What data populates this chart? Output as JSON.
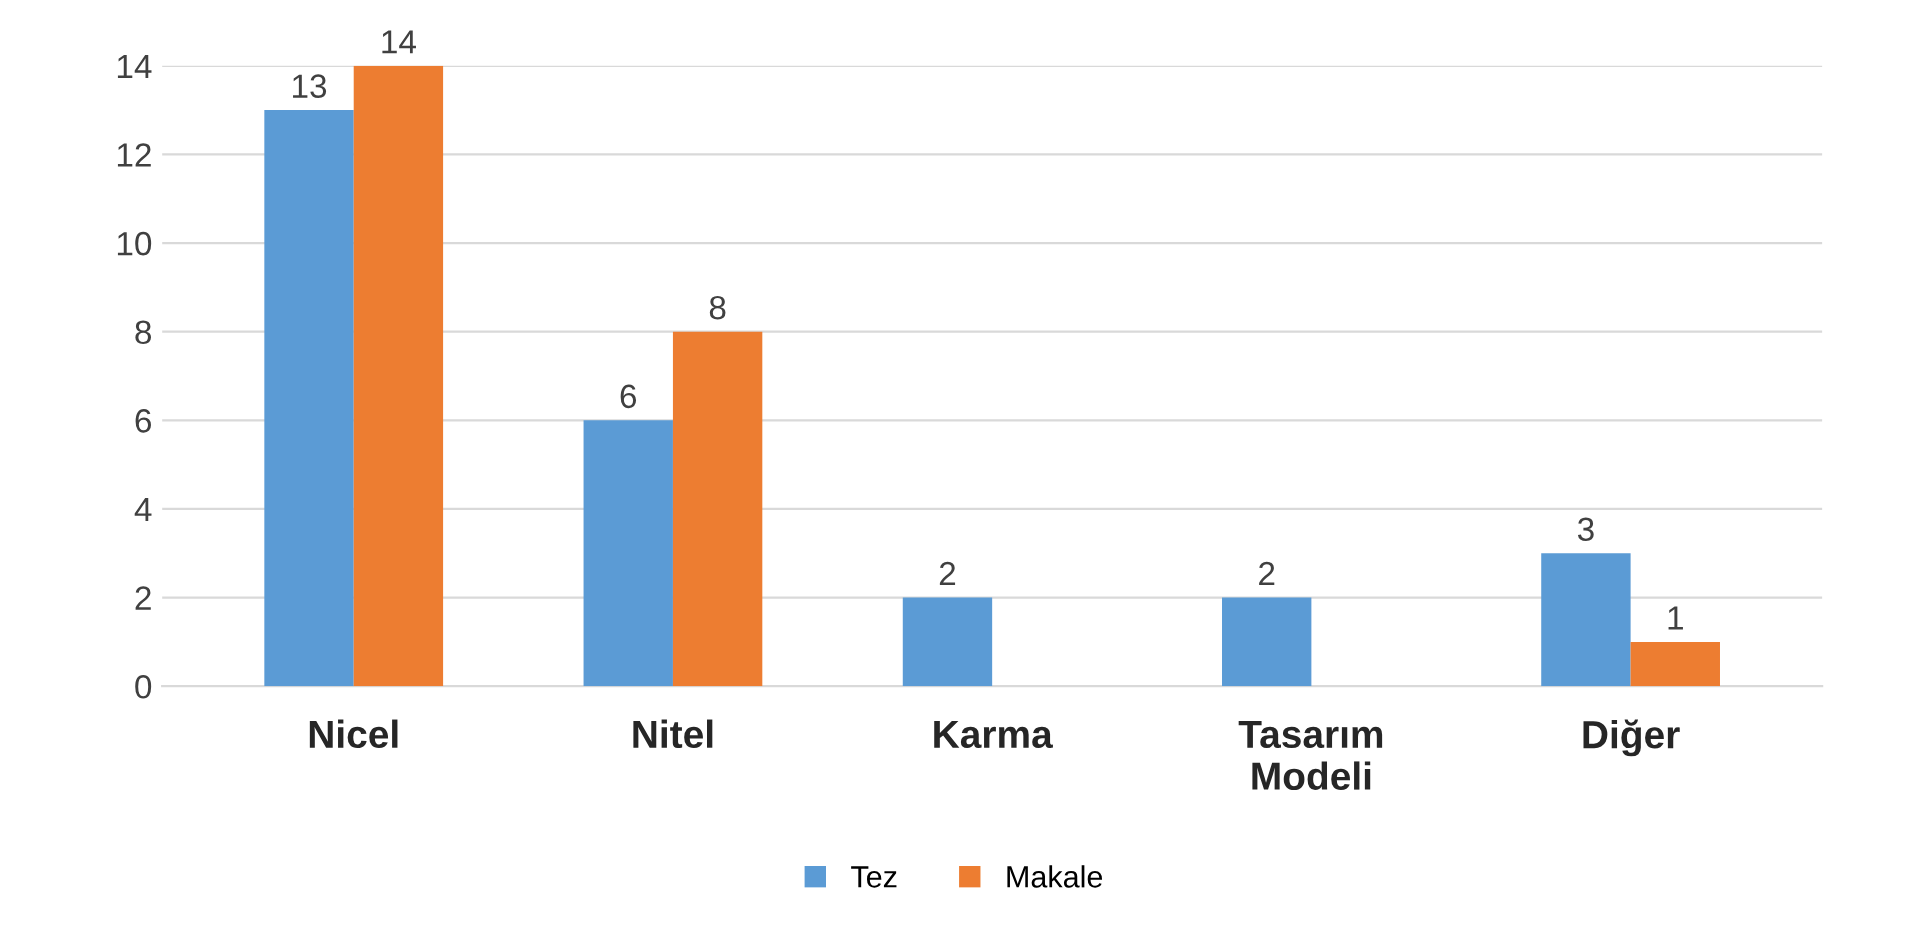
{
  "chart_data": {
    "type": "bar",
    "categories": [
      "Nicel",
      "Nitel",
      "Karma",
      "Tasarım\nModeli",
      "Diğer"
    ],
    "series": [
      {
        "name": "Tez",
        "color": "#5b9bd5",
        "values": [
          13,
          6,
          2,
          2,
          3
        ]
      },
      {
        "name": "Makale",
        "color": "#ed7d31",
        "values": [
          14,
          8,
          null,
          null,
          1
        ]
      }
    ],
    "ylim": [
      0,
      14
    ],
    "yticks": [
      0,
      2,
      4,
      6,
      8,
      10,
      12,
      14
    ],
    "grid": "y",
    "legend": "bottom",
    "data_labels": true
  }
}
